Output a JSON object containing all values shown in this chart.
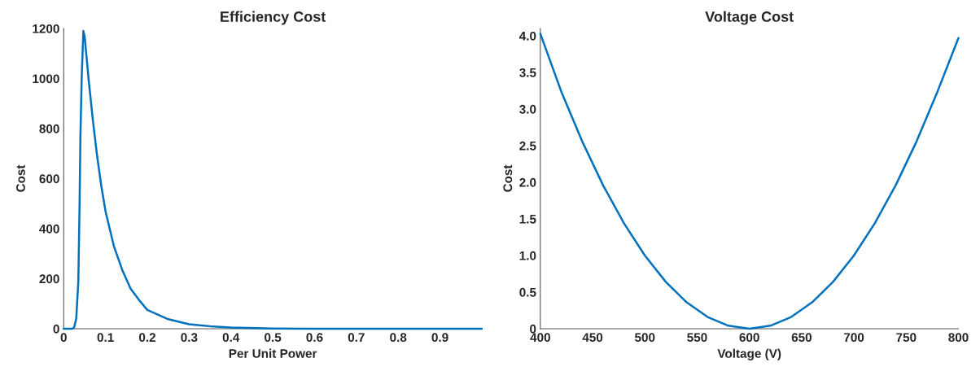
{
  "chart_data": [
    {
      "type": "line",
      "title": "Efficiency Cost",
      "xlabel": "Per Unit Power",
      "ylabel": "Cost",
      "x": [
        0,
        0.01,
        0.02,
        0.025,
        0.03,
        0.035,
        0.038,
        0.04,
        0.043,
        0.047,
        0.05,
        0.055,
        0.06,
        0.07,
        0.08,
        0.09,
        0.1,
        0.12,
        0.14,
        0.16,
        0.18,
        0.2,
        0.25,
        0.3,
        0.35,
        0.4,
        0.5,
        0.6,
        0.8,
        1.0
      ],
      "series": [
        {
          "color": "#0072bd",
          "values": [
            0,
            0,
            0,
            5,
            40,
            190,
            500,
            770,
            1000,
            1190,
            1170,
            1080,
            990,
            830,
            690,
            570,
            470,
            330,
            235,
            160,
            115,
            75,
            38,
            18,
            10,
            5,
            1,
            0,
            0,
            0
          ]
        }
      ],
      "xlim": [
        0,
        1.0
      ],
      "ylim": [
        0,
        1200
      ],
      "xticks": [
        0,
        0.1,
        0.2,
        0.3,
        0.4,
        0.5,
        0.6,
        0.7,
        0.8,
        0.9
      ],
      "yticks": [
        0,
        200,
        400,
        600,
        800,
        1000,
        1200
      ],
      "grid": false,
      "marker": "none",
      "line_style": "solid"
    },
    {
      "type": "line",
      "title": "Voltage Cost",
      "xlabel": "Voltage (V)",
      "ylabel": "Cost",
      "x": [
        400,
        420,
        440,
        460,
        480,
        500,
        520,
        540,
        560,
        580,
        600,
        620,
        640,
        660,
        680,
        700,
        720,
        740,
        760,
        780,
        800
      ],
      "series": [
        {
          "color": "#0072bd",
          "values": [
            4.03,
            3.24,
            2.56,
            1.96,
            1.44,
            1.0,
            0.64,
            0.36,
            0.16,
            0.04,
            0,
            0.04,
            0.16,
            0.36,
            0.64,
            1.0,
            1.44,
            1.96,
            2.56,
            3.24,
            3.97
          ]
        }
      ],
      "xlim": [
        400,
        800
      ],
      "ylim": [
        0,
        4.1
      ],
      "xticks": [
        400,
        450,
        500,
        550,
        600,
        650,
        700,
        750,
        800
      ],
      "yticks": [
        0,
        0.5,
        {
          "value": 1,
          "label": "1.0"
        },
        1.5,
        {
          "value": 2,
          "label": "2.0"
        },
        2.5,
        {
          "value": 3,
          "label": "3.0"
        },
        3.5,
        {
          "value": 4,
          "label": "4.0"
        }
      ],
      "grid": false,
      "marker": "none",
      "line_style": "solid"
    }
  ]
}
